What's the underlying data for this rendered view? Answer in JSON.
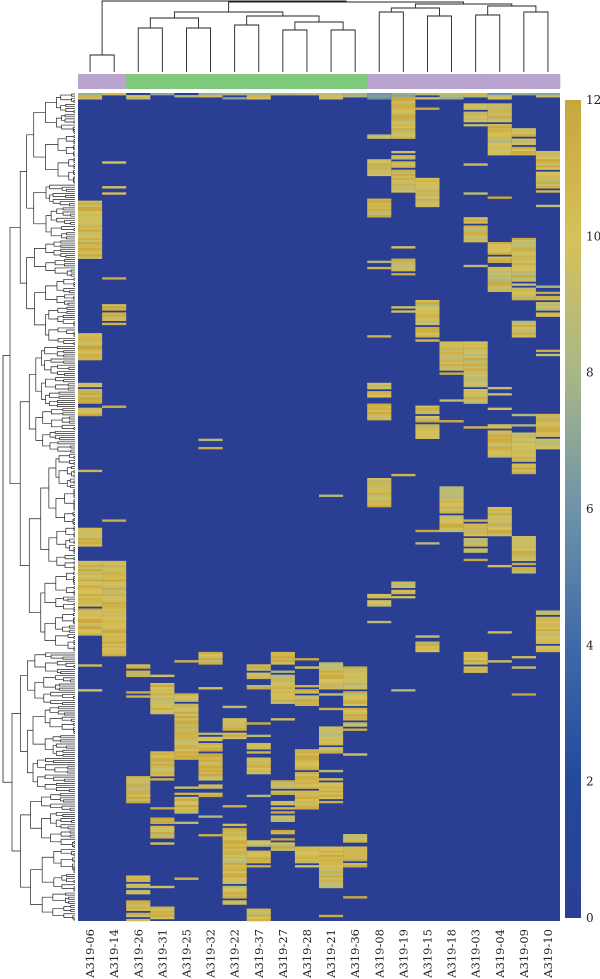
{
  "chart_data": {
    "type": "heatmap",
    "title": "",
    "xlabel": "",
    "ylabel": "",
    "columns": [
      "A319-06",
      "A319-14",
      "A319-26",
      "A319-31",
      "A319-25",
      "A319-32",
      "A319-22",
      "A319-37",
      "A319-27",
      "A319-28",
      "A319-21",
      "A319-36",
      "A319-08",
      "A319-19",
      "A319-15",
      "A319-18",
      "A319-03",
      "A319-04",
      "A319-09",
      "A319-10"
    ],
    "column_groups": [
      "purple",
      "purple",
      "green",
      "green",
      "green",
      "green",
      "green",
      "green",
      "green",
      "green",
      "green",
      "green",
      "purple",
      "purple",
      "purple",
      "purple",
      "purple",
      "purple",
      "purple",
      "purple"
    ],
    "group_colors": {
      "purple": "#b9a3cf",
      "green": "#7ec97b"
    },
    "colorbar": {
      "min": 0,
      "max": 12,
      "ticks": [
        "0",
        "2",
        "4",
        "6",
        "8",
        "10",
        "12"
      ],
      "colors": [
        "#2a3f94",
        "#23499c",
        "#3f6aa8",
        "#6f93a8",
        "#a9b787",
        "#d6c15a",
        "#c9a63b"
      ]
    },
    "row_count": 400,
    "row_dendrogram": true,
    "column_dendrogram": true,
    "note_values": "expression values range 0-12; dominant background value 0 (dark blue); high blocks ~10-12 (yellow)"
  }
}
